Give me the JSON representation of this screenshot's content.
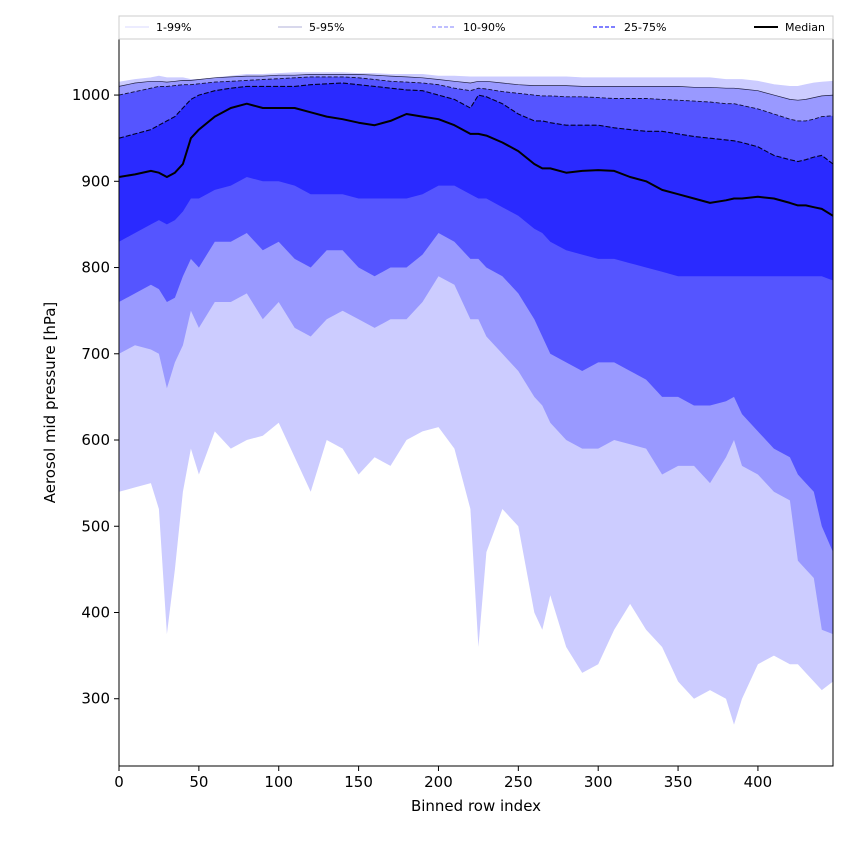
{
  "chart_data": {
    "type": "area",
    "title": "",
    "xlabel": "Binned row index",
    "ylabel": "Aerosol mid pressure [hPa]",
    "xlim": [
      0,
      447
    ],
    "ylim": [
      222,
      1065
    ],
    "x_ticks": [
      0,
      50,
      100,
      150,
      200,
      250,
      300,
      350,
      400
    ],
    "y_ticks": [
      300,
      400,
      500,
      600,
      700,
      800,
      900,
      1000
    ],
    "grid": false,
    "legend_placement": "top, above plot",
    "x": [
      0,
      10,
      20,
      25,
      30,
      35,
      40,
      45,
      50,
      60,
      70,
      80,
      90,
      100,
      110,
      120,
      130,
      140,
      150,
      160,
      170,
      180,
      190,
      200,
      210,
      220,
      225,
      230,
      240,
      250,
      260,
      265,
      270,
      280,
      290,
      300,
      310,
      320,
      330,
      340,
      350,
      360,
      370,
      380,
      385,
      390,
      400,
      410,
      420,
      425,
      430,
      435,
      440,
      447
    ],
    "series": [
      {
        "name": "1-99%",
        "color": "#ccccff",
        "lower": [
          540,
          545,
          550,
          520,
          375,
          450,
          540,
          590,
          560,
          610,
          590,
          600,
          605,
          620,
          580,
          540,
          600,
          590,
          560,
          580,
          570,
          600,
          610,
          615,
          590,
          520,
          360,
          470,
          520,
          500,
          400,
          380,
          420,
          360,
          330,
          340,
          380,
          410,
          380,
          360,
          320,
          300,
          310,
          300,
          270,
          300,
          340,
          350,
          340,
          340,
          330,
          320,
          310,
          320
        ],
        "upper": [
          1015,
          1018,
          1020,
          1022,
          1020,
          1020,
          1020,
          1018,
          1018,
          1020,
          1022,
          1024,
          1024,
          1025,
          1026,
          1026,
          1026,
          1026,
          1025,
          1025,
          1024,
          1024,
          1024,
          1022,
          1022,
          1021,
          1021,
          1021,
          1021,
          1021,
          1021,
          1021,
          1021,
          1021,
          1020,
          1020,
          1020,
          1020,
          1020,
          1020,
          1020,
          1020,
          1020,
          1018,
          1018,
          1018,
          1016,
          1012,
          1010,
          1010,
          1012,
          1014,
          1015,
          1016
        ]
      },
      {
        "name": "5-95%",
        "color": "#9999ff",
        "lower": [
          700,
          710,
          705,
          700,
          660,
          690,
          710,
          750,
          730,
          760,
          760,
          770,
          740,
          760,
          730,
          720,
          740,
          750,
          740,
          730,
          740,
          740,
          760,
          790,
          780,
          740,
          740,
          720,
          700,
          680,
          650,
          640,
          620,
          600,
          590,
          590,
          600,
          595,
          590,
          560,
          570,
          570,
          550,
          580,
          600,
          570,
          560,
          540,
          530,
          460,
          450,
          440,
          380,
          375
        ],
        "upper": [
          1010,
          1014,
          1016,
          1016,
          1015,
          1016,
          1017,
          1017,
          1018,
          1020,
          1021,
          1022,
          1022,
          1023,
          1023,
          1024,
          1024,
          1024,
          1024,
          1023,
          1022,
          1021,
          1020,
          1018,
          1016,
          1014,
          1016,
          1016,
          1014,
          1012,
          1011,
          1011,
          1011,
          1011,
          1010,
          1010,
          1010,
          1010,
          1010,
          1010,
          1010,
          1009,
          1009,
          1008,
          1008,
          1007,
          1005,
          1000,
          995,
          994,
          995,
          997,
          999,
          1000
        ]
      },
      {
        "name": "10-90%",
        "color": "#5555ff",
        "lower": [
          760,
          770,
          780,
          775,
          760,
          765,
          790,
          810,
          800,
          830,
          830,
          840,
          820,
          830,
          810,
          800,
          820,
          820,
          800,
          790,
          800,
          800,
          815,
          840,
          830,
          810,
          810,
          800,
          790,
          770,
          740,
          720,
          700,
          690,
          680,
          690,
          690,
          680,
          670,
          650,
          650,
          640,
          640,
          645,
          650,
          630,
          610,
          590,
          580,
          560,
          550,
          540,
          500,
          470
        ],
        "upper": [
          1000,
          1004,
          1008,
          1010,
          1010,
          1011,
          1012,
          1012,
          1013,
          1015,
          1016,
          1017,
          1018,
          1019,
          1020,
          1021,
          1021,
          1021,
          1020,
          1018,
          1016,
          1015,
          1014,
          1012,
          1008,
          1005,
          1008,
          1007,
          1004,
          1002,
          1000,
          999,
          999,
          998,
          998,
          997,
          996,
          996,
          996,
          995,
          994,
          993,
          992,
          990,
          990,
          988,
          984,
          978,
          972,
          970,
          970,
          972,
          975,
          976
        ]
      },
      {
        "name": "25-75%",
        "color": "#2a2aff",
        "lower": [
          830,
          840,
          850,
          855,
          850,
          855,
          865,
          880,
          880,
          890,
          895,
          905,
          900,
          900,
          895,
          885,
          885,
          885,
          880,
          880,
          880,
          880,
          885,
          895,
          895,
          885,
          880,
          880,
          870,
          860,
          845,
          840,
          830,
          820,
          815,
          810,
          810,
          805,
          800,
          795,
          790,
          790,
          790,
          790,
          790,
          790,
          790,
          790,
          790,
          790,
          790,
          790,
          790,
          785
        ],
        "upper": [
          950,
          955,
          960,
          965,
          970,
          975,
          985,
          995,
          1000,
          1005,
          1008,
          1010,
          1010,
          1010,
          1010,
          1012,
          1013,
          1014,
          1012,
          1010,
          1008,
          1006,
          1005,
          1000,
          995,
          985,
          1000,
          998,
          990,
          978,
          970,
          970,
          968,
          965,
          965,
          965,
          962,
          960,
          958,
          958,
          955,
          952,
          950,
          948,
          947,
          945,
          940,
          930,
          925,
          923,
          925,
          928,
          930,
          920
        ]
      },
      {
        "name": "Median",
        "color": "#000000",
        "values": [
          905,
          908,
          912,
          910,
          905,
          910,
          920,
          950,
          960,
          975,
          985,
          990,
          985,
          985,
          985,
          980,
          975,
          972,
          968,
          965,
          970,
          978,
          975,
          972,
          965,
          955,
          955,
          953,
          945,
          935,
          920,
          915,
          915,
          910,
          912,
          913,
          912,
          905,
          900,
          890,
          885,
          880,
          875,
          878,
          880,
          880,
          882,
          880,
          875,
          872,
          872,
          870,
          868,
          860
        ]
      }
    ]
  },
  "colors": {
    "band_1_99": "#ccccff",
    "band_5_95": "#9999ff",
    "band_10_90": "#5555ff",
    "band_25_75": "#2a2aff",
    "median": "#000000"
  }
}
